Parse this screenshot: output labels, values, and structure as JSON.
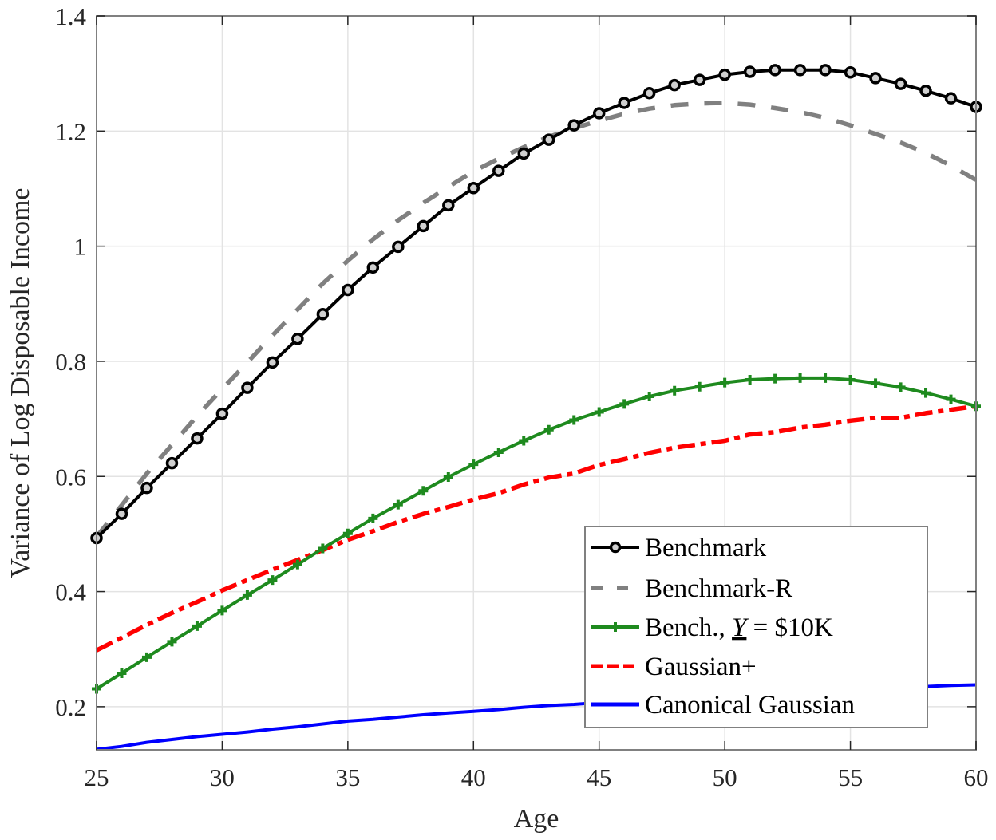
{
  "chart_data": {
    "type": "line",
    "title": "",
    "xlabel": "Age",
    "ylabel": "Variance of Log Disposable Income",
    "xlim": [
      25,
      60
    ],
    "ylim": [
      0.125,
      1.4
    ],
    "xticks": [
      25,
      30,
      35,
      40,
      45,
      50,
      55,
      60
    ],
    "yticks": [
      0.2,
      0.4,
      0.6,
      0.8,
      1.0,
      1.2,
      1.4
    ],
    "xtick_labels": [
      "25",
      "30",
      "35",
      "40",
      "45",
      "50",
      "55",
      "60"
    ],
    "ytick_labels": [
      "0.2",
      "0.4",
      "0.6",
      "0.8",
      "1",
      "1.2",
      "1.4"
    ],
    "grid": true,
    "legend_position": "lower right",
    "x": [
      25,
      26,
      27,
      28,
      29,
      30,
      31,
      32,
      33,
      34,
      35,
      36,
      37,
      38,
      39,
      40,
      41,
      42,
      43,
      44,
      45,
      46,
      47,
      48,
      49,
      50,
      51,
      52,
      53,
      54,
      55,
      56,
      57,
      58,
      59,
      60
    ],
    "series": [
      {
        "name": "Benchmark",
        "color": "#000000",
        "style": "solid",
        "marker": "circle",
        "values": [
          0.493,
          0.535,
          0.58,
          0.623,
          0.666,
          0.709,
          0.754,
          0.798,
          0.839,
          0.882,
          0.924,
          0.963,
          0.999,
          1.035,
          1.071,
          1.101,
          1.131,
          1.161,
          1.185,
          1.21,
          1.231,
          1.249,
          1.266,
          1.28,
          1.289,
          1.298,
          1.303,
          1.306,
          1.306,
          1.306,
          1.302,
          1.292,
          1.282,
          1.27,
          1.257,
          1.242
        ]
      },
      {
        "name": "Benchmark-R",
        "color": "#808080",
        "style": "dashed",
        "marker": "none",
        "values": [
          0.495,
          0.55,
          0.605,
          0.655,
          0.705,
          0.752,
          0.798,
          0.845,
          0.89,
          0.935,
          0.975,
          1.012,
          1.045,
          1.075,
          1.103,
          1.13,
          1.152,
          1.172,
          1.19,
          1.205,
          1.218,
          1.23,
          1.239,
          1.245,
          1.248,
          1.249,
          1.246,
          1.24,
          1.233,
          1.223,
          1.21,
          1.195,
          1.18,
          1.162,
          1.14,
          1.115
        ]
      },
      {
        "name": "Bench., Y = $10K",
        "color": "#1e8a1e",
        "style": "solid",
        "marker": "plus",
        "values": [
          0.231,
          0.258,
          0.286,
          0.313,
          0.34,
          0.367,
          0.394,
          0.42,
          0.447,
          0.475,
          0.501,
          0.527,
          0.551,
          0.575,
          0.599,
          0.621,
          0.642,
          0.662,
          0.681,
          0.698,
          0.712,
          0.726,
          0.739,
          0.749,
          0.756,
          0.763,
          0.768,
          0.77,
          0.771,
          0.771,
          0.768,
          0.762,
          0.755,
          0.745,
          0.734,
          0.722
        ]
      },
      {
        "name": "Gaussian+",
        "color": "#ff0000",
        "style": "dashdot",
        "marker": "none",
        "values": [
          0.298,
          0.32,
          0.342,
          0.363,
          0.382,
          0.402,
          0.42,
          0.438,
          0.455,
          0.472,
          0.49,
          0.505,
          0.521,
          0.535,
          0.547,
          0.56,
          0.571,
          0.586,
          0.598,
          0.605,
          0.62,
          0.63,
          0.641,
          0.65,
          0.656,
          0.662,
          0.673,
          0.677,
          0.685,
          0.69,
          0.697,
          0.702,
          0.702,
          0.71,
          0.716,
          0.722
        ]
      },
      {
        "name": "Canonical Gaussian",
        "color": "#0000ff",
        "style": "solid",
        "marker": "none",
        "values": [
          0.126,
          0.131,
          0.138,
          0.143,
          0.148,
          0.152,
          0.156,
          0.161,
          0.165,
          0.17,
          0.175,
          0.178,
          0.182,
          0.186,
          0.189,
          0.192,
          0.195,
          0.199,
          0.202,
          0.204,
          0.207,
          0.21,
          0.213,
          0.215,
          0.217,
          0.219,
          0.221,
          0.223,
          0.225,
          0.227,
          0.229,
          0.231,
          0.233,
          0.235,
          0.237,
          0.238
        ]
      }
    ]
  },
  "legend": {
    "items": [
      {
        "label": "Benchmark"
      },
      {
        "label": "Benchmark-R"
      },
      {
        "label_prefix": "Bench., ",
        "label_var": "Y",
        "label_suffix": " = $10K"
      },
      {
        "label": "Gaussian+"
      },
      {
        "label": "Canonical Gaussian"
      }
    ]
  }
}
